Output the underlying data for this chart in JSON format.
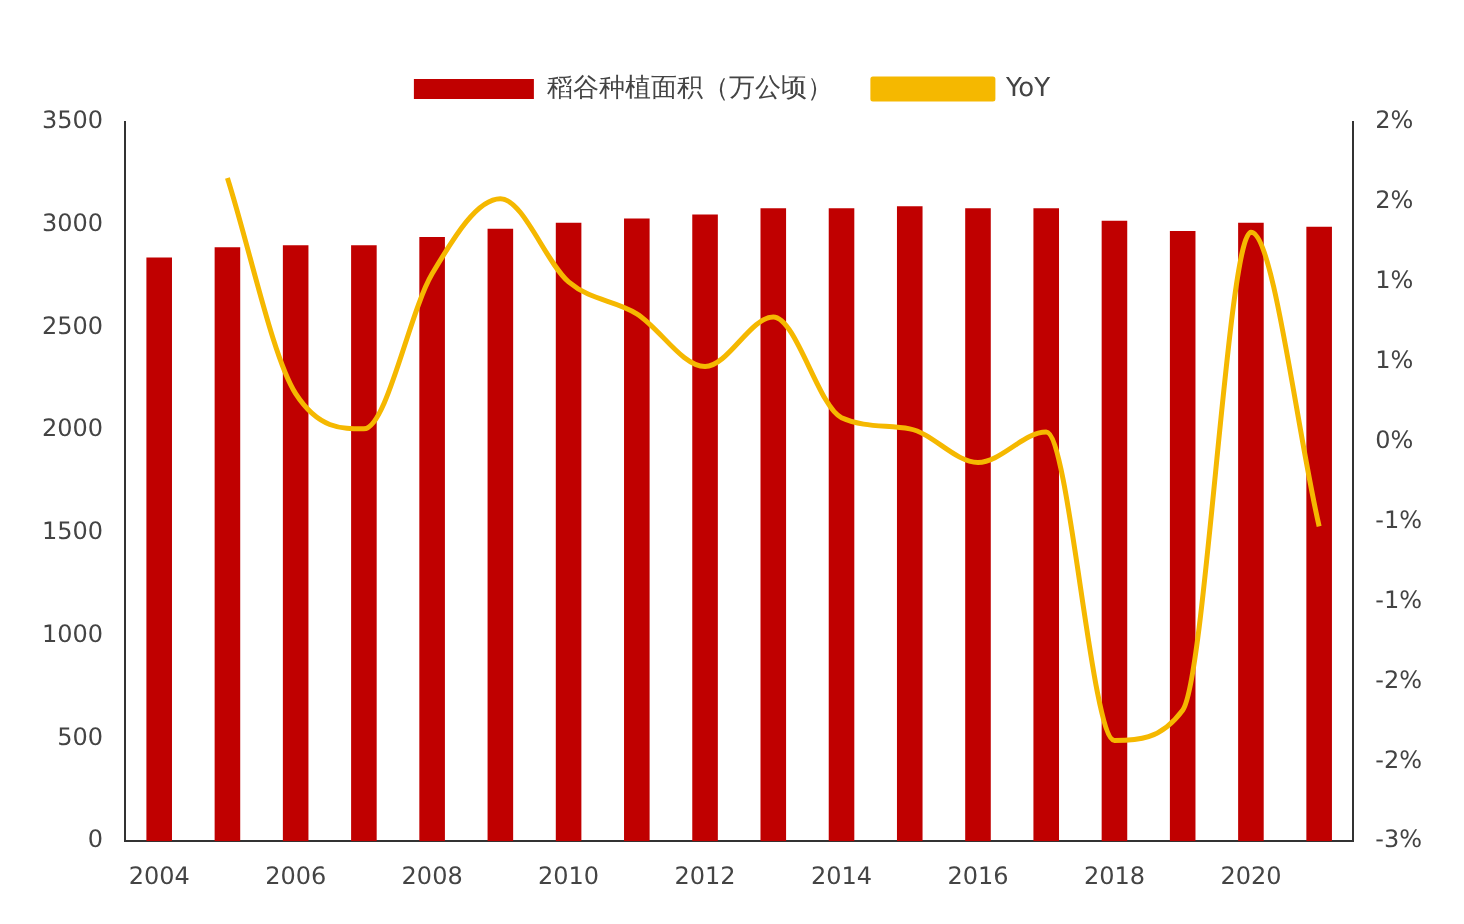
{
  "chart_data": {
    "type": "bar",
    "categories": [
      "2004",
      null,
      "2006",
      null,
      "2008",
      null,
      "2010",
      null,
      "2012",
      null,
      "2014",
      null,
      "2016",
      null,
      "2018",
      null,
      "2020",
      null
    ],
    "series": [
      {
        "name": "稻谷种植面积（万公顷）",
        "color": "#c00000",
        "values": [
          2840,
          2890,
          2900,
          2900,
          2940,
          2980,
          3010,
          3030,
          3050,
          3080,
          3080,
          3090,
          3080,
          3080,
          3020,
          2970,
          3010,
          2990
        ]
      },
      {
        "name": "YoY",
        "type": "line",
        "axis": "y2",
        "color": "#f5b800",
        "values": [
          null,
          1.65,
          0.3,
          0.08,
          1.05,
          1.52,
          1.0,
          0.8,
          0.47,
          0.78,
          0.15,
          0.08,
          -0.13,
          0.06,
          -1.87,
          -1.68,
          1.31,
          -0.53
        ]
      }
    ],
    "ylim": [
      0,
      3500
    ],
    "yticks": [
      0,
      500,
      1000,
      1500,
      2000,
      2500,
      3000,
      3500
    ],
    "y2lim": [
      -2.5,
      2.0
    ],
    "y2ticks": [
      {
        "value": -2.5,
        "label": "-3%"
      },
      {
        "value": -2.0,
        "label": "-2%"
      },
      {
        "value": -1.5,
        "label": "-2%"
      },
      {
        "value": -1.0,
        "label": "-1%"
      },
      {
        "value": -0.5,
        "label": "-1%"
      },
      {
        "value": 0,
        "label": "0%"
      },
      {
        "value": 0.5,
        "label": "1%"
      },
      {
        "value": 1.0,
        "label": "1%"
      },
      {
        "value": 1.5,
        "label": "2%"
      },
      {
        "value": 2.0,
        "label": "2%"
      }
    ],
    "grid": false,
    "legend": "top",
    "marker": "none",
    "line_style": "solid"
  }
}
